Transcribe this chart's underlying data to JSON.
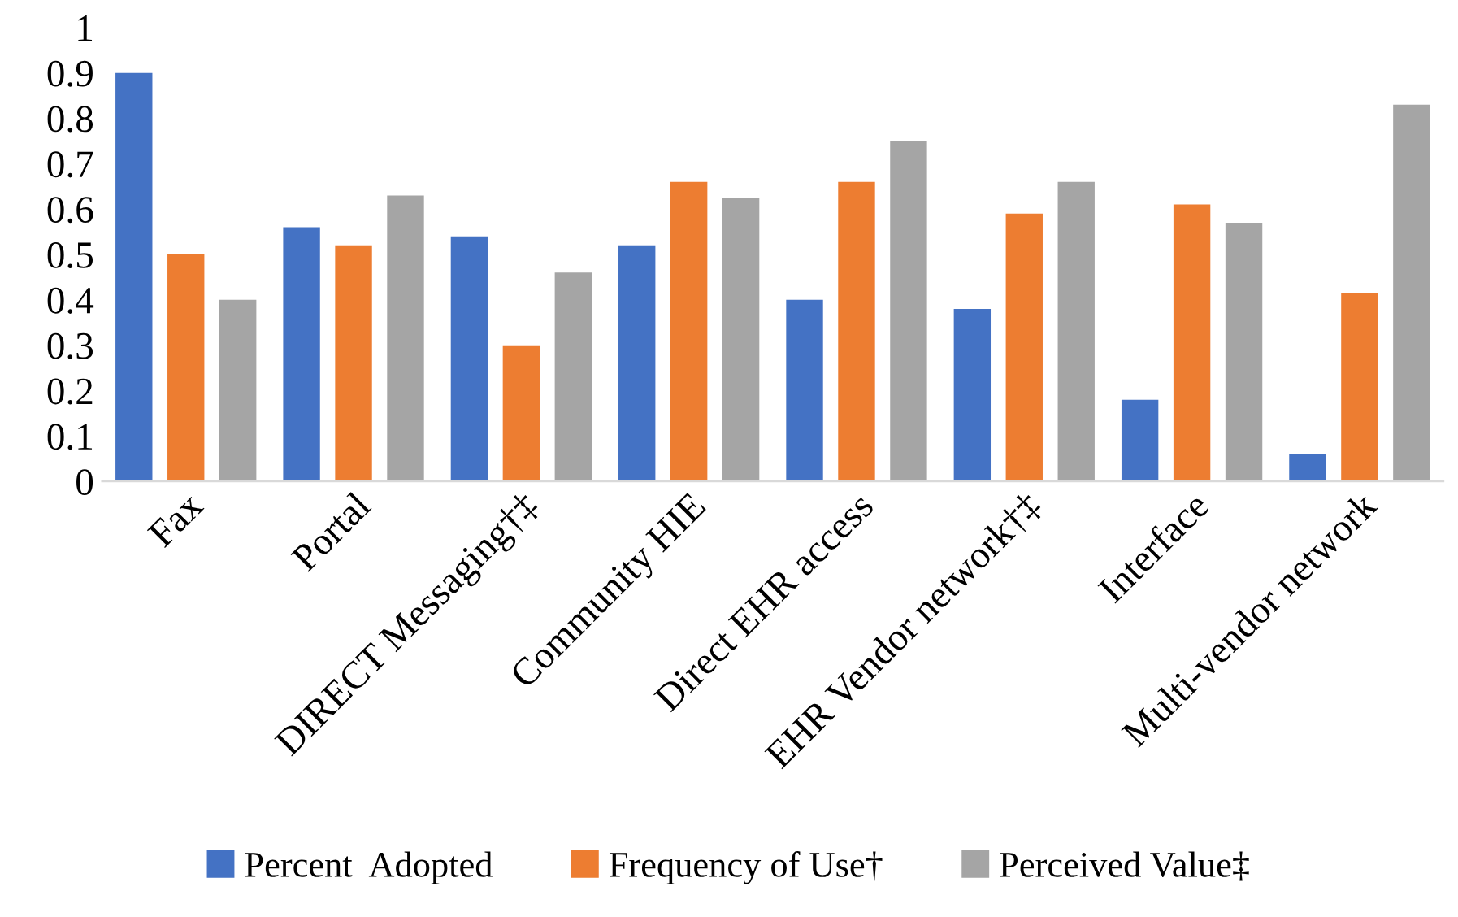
{
  "chart_data": {
    "type": "bar",
    "categories": [
      "Fax",
      "Portal",
      "DIRECT Messaging†‡",
      "Community HIE",
      "Direct EHR access",
      "EHR Vendor network†‡",
      "Interface",
      "Multi-vendor network"
    ],
    "series": [
      {
        "name": "Percent  Adopted",
        "color": "#4472c4",
        "values": [
          0.9,
          0.56,
          0.54,
          0.52,
          0.4,
          0.38,
          0.18,
          0.06
        ]
      },
      {
        "name": "Frequency of Use†",
        "color": "#ed7d31",
        "values": [
          0.5,
          0.52,
          0.3,
          0.66,
          0.66,
          0.59,
          0.61,
          0.415
        ]
      },
      {
        "name": "Perceived Value‡",
        "color": "#a5a5a5",
        "values": [
          0.4,
          0.63,
          0.46,
          0.625,
          0.75,
          0.66,
          0.57,
          0.83
        ]
      }
    ],
    "ylim": [
      0,
      1
    ],
    "yticks": [
      0,
      0.1,
      0.2,
      0.3,
      0.4,
      0.5,
      0.6,
      0.7,
      0.8,
      0.9,
      1
    ],
    "grid": false,
    "legend": "bottom"
  }
}
